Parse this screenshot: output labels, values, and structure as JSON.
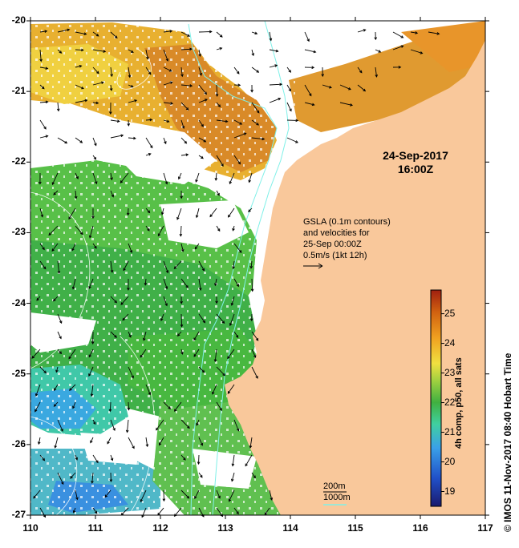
{
  "date_label": "24-Sep-2017",
  "time_label": "16:00Z",
  "legend": {
    "line1": "GSLA (0.1m contours)",
    "line2": "and velocities for",
    "line3": "25-Sep 00:00Z",
    "line4": "0.5m/s (1kt 12h)"
  },
  "scale": {
    "depth1": "200m",
    "depth2": "1000m"
  },
  "colorbar": {
    "label": "4h comp, p50, all sats",
    "ticks": [
      "19",
      "20",
      "21",
      "22",
      "23",
      "24",
      "25"
    ],
    "range": [
      18.5,
      25.8
    ],
    "colors": [
      "#1a1a6e",
      "#2050c8",
      "#3aa0e8",
      "#40d0a0",
      "#40b040",
      "#a0d040",
      "#f0e040",
      "#f0a020",
      "#d06010",
      "#a02010"
    ]
  },
  "credit": "© IMOS 11-Nov-2017 08:40 Hobart Time",
  "axes": {
    "x_ticks": [
      "110",
      "111",
      "112",
      "113",
      "114",
      "115",
      "116",
      "117"
    ],
    "y_ticks": [
      "-20",
      "-21",
      "-22",
      "-23",
      "-24",
      "-25",
      "-26",
      "-27"
    ]
  },
  "colors": {
    "land": "#f9c89b",
    "contour": "#7ff0e8"
  }
}
